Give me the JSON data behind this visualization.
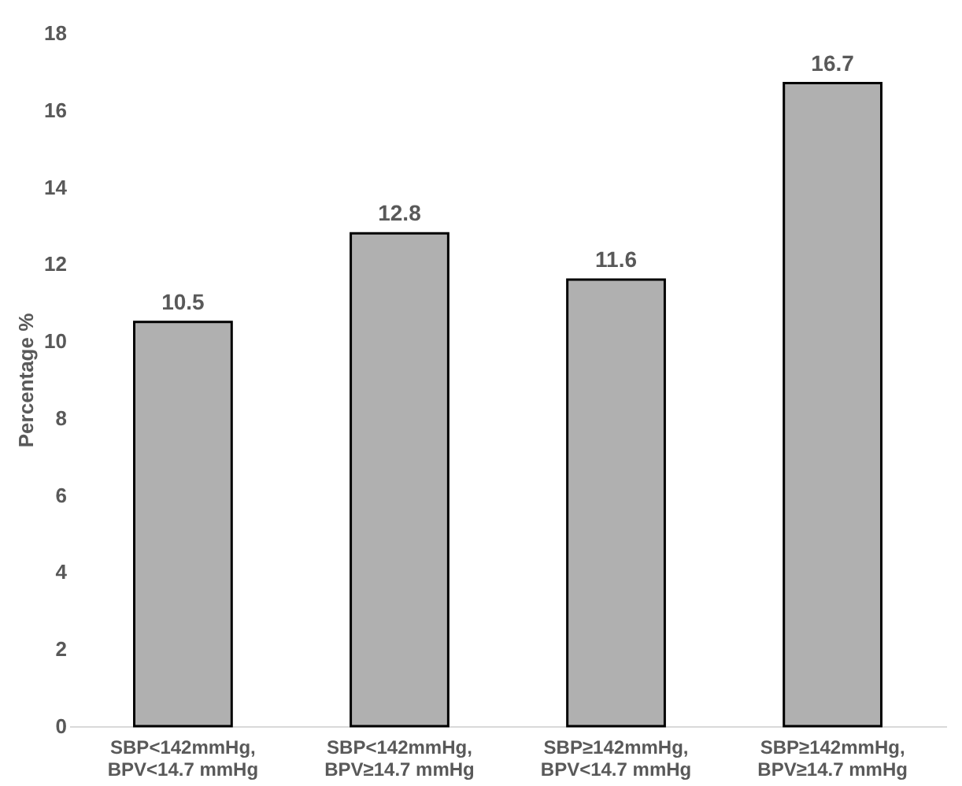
{
  "chart_data": {
    "type": "bar",
    "ylabel": "Percentage %",
    "categories": [
      "SBP<142mmHg, BPV<14.7 mmHg",
      "SBP<142mmHg, BPV≥14.7 mmHg",
      "SBP≥142mmHg, BPV<14.7 mmHg",
      "SBP≥142mmHg, BPV≥14.7 mmHg"
    ],
    "values": [
      10.5,
      12.8,
      11.6,
      16.7
    ],
    "color": "#b0b0b0",
    "ylim": [
      0,
      18
    ],
    "yticks": [
      0,
      2,
      4,
      6,
      8,
      10,
      12,
      14,
      16,
      18
    ],
    "grid": false,
    "data_labels": true
  }
}
